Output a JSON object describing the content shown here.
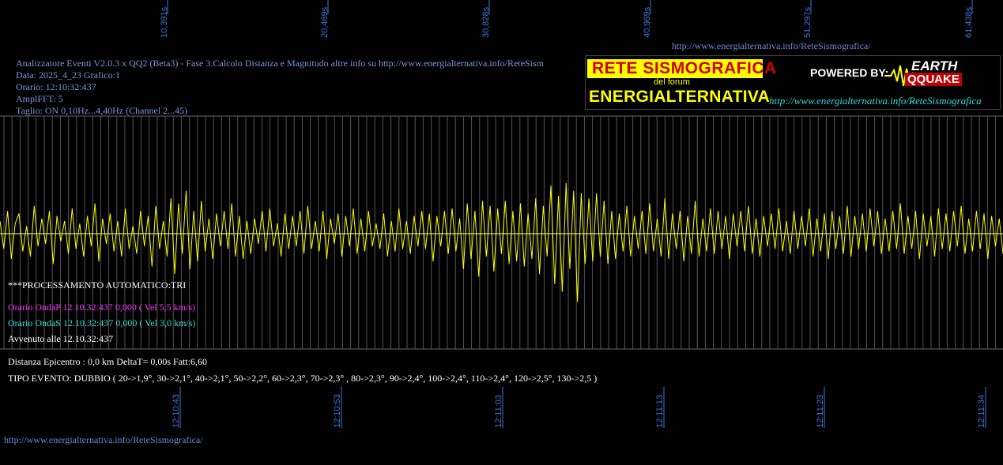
{
  "header": {
    "line1": "Analizzatore Eventi V2.0.3 x QQ2 (Beta3) - Fase 3.Calcolo Distanza e Magnitudo altre info su http://www.energialternativa.info/ReteSism",
    "line2": "Data: 2025_4_23 Grafico:1",
    "line3": "Orario: 12:10:32:437",
    "line4": "AmplFFT: 5",
    "line5": "Taglio: ON 0,10Hz...4,40Hz      (Channel 2...45)"
  },
  "top_url": "http://www.energialternativa.info/ReteSismografica/",
  "bottom_url": "http://www.energialternativa.info/ReteSismografica/",
  "logo": {
    "rete": "RETE SISMOGRAFICA",
    "forum": "del forum",
    "energ": "ENERGIALTERNATIVA",
    "powered": "POWERED BY:",
    "earth": "EARTH",
    "qq": "QQUAKE",
    "url": "http://www.energialternativa.info/ReteSismografica"
  },
  "info": {
    "processing": "***PROCESSAMENTO AUTOMATICO:TRI",
    "onda_p": "Orario OndaP 12.10.32:437  0,000 ( Vel 5,5 km/s)",
    "onda_s": "Orario OndaS 12.10.32:437  0,000 ( Vel 3,0 km/s)",
    "avvenuto": "Avvenuto alle 12.10.32:437",
    "distanza": "Distanza Epicentro : 0,0 km DeltaT= 0,00s  Fatt:6,60",
    "tipo_evento": "TIPO EVENTO: DUBBIO ( 20->1,9°, 30->2,1°, 40->2,1°, 50->2,2°, 60->2,3°, 70->2,3° , 80->2,3°, 90->2,4°, 100->2,4°, 110->2,4°, 120->2,5°, 130->2,5 )"
  },
  "colors": {
    "trace": "#ffff00",
    "baseline": "#ffffcc",
    "grid": "#555555",
    "tick_label": "#3b78d8"
  },
  "chart_data": {
    "type": "line",
    "title": "",
    "xlabel": "",
    "ylabel": "",
    "top_ticks": [
      "10,391s",
      "20,469s",
      "30,828s",
      "40,969s",
      "51,297s",
      "61,438s"
    ],
    "bottom_ticks": [
      "12:10:43",
      "12:10:53",
      "12:11:03",
      "12:11:13",
      "12:11:23",
      "12:11:34"
    ],
    "series": [
      {
        "values": [
          0.5,
          -0.6,
          0.9,
          -1.0,
          0.4,
          0.8,
          -0.7,
          0.3,
          -0.9,
          1.1,
          -0.5,
          0.6,
          -0.4,
          0.9,
          -1.2,
          0.7,
          -0.3,
          0.5,
          -0.8,
          1.0,
          -0.6,
          0.4,
          -0.9,
          0.7,
          -0.5,
          1.2,
          -1.1,
          0.6,
          -0.4,
          0.8,
          -0.7,
          0.5,
          -0.9,
          1.0,
          -0.6,
          0.3,
          -0.8,
          0.9,
          -0.5,
          0.7,
          -1.3,
          1.1,
          -0.6,
          0.5,
          -0.9,
          1.4,
          -1.6,
          1.2,
          -0.8,
          1.7,
          -1.4,
          0.9,
          -1.1,
          1.3,
          -0.7,
          0.6,
          -1.0,
          0.8,
          -0.5,
          0.9,
          -0.6,
          1.2,
          -0.9,
          0.7,
          -1.0,
          0.5,
          -0.8,
          0.6,
          -0.4,
          0.9,
          -0.7,
          1.0,
          -0.5,
          0.4,
          -0.9,
          0.8,
          -0.6,
          0.7,
          -0.5,
          0.9,
          -0.8,
          1.1,
          -0.6,
          0.5,
          -0.7,
          0.9,
          -1.0,
          0.6,
          -0.4,
          0.8,
          -0.9,
          0.7,
          -0.5,
          1.0,
          -0.8,
          0.6,
          -0.7,
          0.9,
          -0.5,
          0.4,
          -0.6,
          0.8,
          -0.9,
          0.5,
          -0.7,
          1.0,
          -0.6,
          0.5,
          -0.8,
          0.7,
          -0.5,
          0.9,
          -0.6,
          0.8,
          -1.1,
          0.7,
          -0.5,
          0.9,
          -0.8,
          1.0,
          -0.7,
          0.6,
          -1.4,
          1.2,
          -1.0,
          0.9,
          -1.7,
          1.3,
          -0.9,
          1.1,
          -1.5,
          1.0,
          -0.8,
          1.3,
          -1.2,
          0.9,
          -1.1,
          1.2,
          -1.3,
          0.8,
          -1.0,
          1.4,
          -1.6,
          1.1,
          -0.9,
          1.9,
          -2.0,
          1.5,
          -2.3,
          2.0,
          -1.4,
          1.7,
          -2.7,
          1.6,
          -1.2,
          1.4,
          -1.1,
          1.6,
          -0.9,
          1.3,
          -1.2,
          0.9,
          -1.0,
          0.8,
          -0.7,
          1.1,
          -0.9,
          0.7,
          -0.6,
          0.9,
          -0.8,
          1.2,
          -0.7,
          0.6,
          -0.9,
          1.4,
          -1.0,
          0.8,
          -0.6,
          0.9,
          -1.1,
          0.7,
          -0.8,
          1.3,
          -0.9,
          0.6,
          -0.7,
          1.0,
          -0.8,
          0.9,
          -0.6,
          0.7,
          -1.0,
          0.8,
          -0.5,
          0.9,
          -0.7,
          1.1,
          -0.8,
          0.6,
          -0.9,
          0.7,
          -0.5,
          0.8,
          -0.6,
          1.0,
          -0.7,
          0.5,
          -0.8,
          0.9,
          -0.6,
          0.7,
          -0.5,
          1.0,
          -0.9,
          0.6,
          -0.7,
          0.8,
          -1.0,
          0.9,
          -0.6,
          0.7,
          -0.8,
          1.1,
          -0.9,
          0.7,
          -0.6,
          0.8,
          -0.7,
          1.0,
          -0.5,
          0.9,
          -0.8,
          0.6,
          -0.7,
          0.9,
          -0.6,
          1.2,
          -0.8,
          0.7,
          -0.6,
          0.9,
          -1.0,
          0.8,
          -0.5,
          0.7,
          -0.9,
          1.0,
          -0.6,
          0.8,
          -0.7,
          0.9,
          -0.5,
          1.1,
          -0.8,
          0.6,
          -0.7,
          0.9,
          -0.6,
          0.8,
          -1.0,
          0.7,
          -0.5,
          0.6,
          -0.8
        ]
      }
    ],
    "grid": true
  }
}
